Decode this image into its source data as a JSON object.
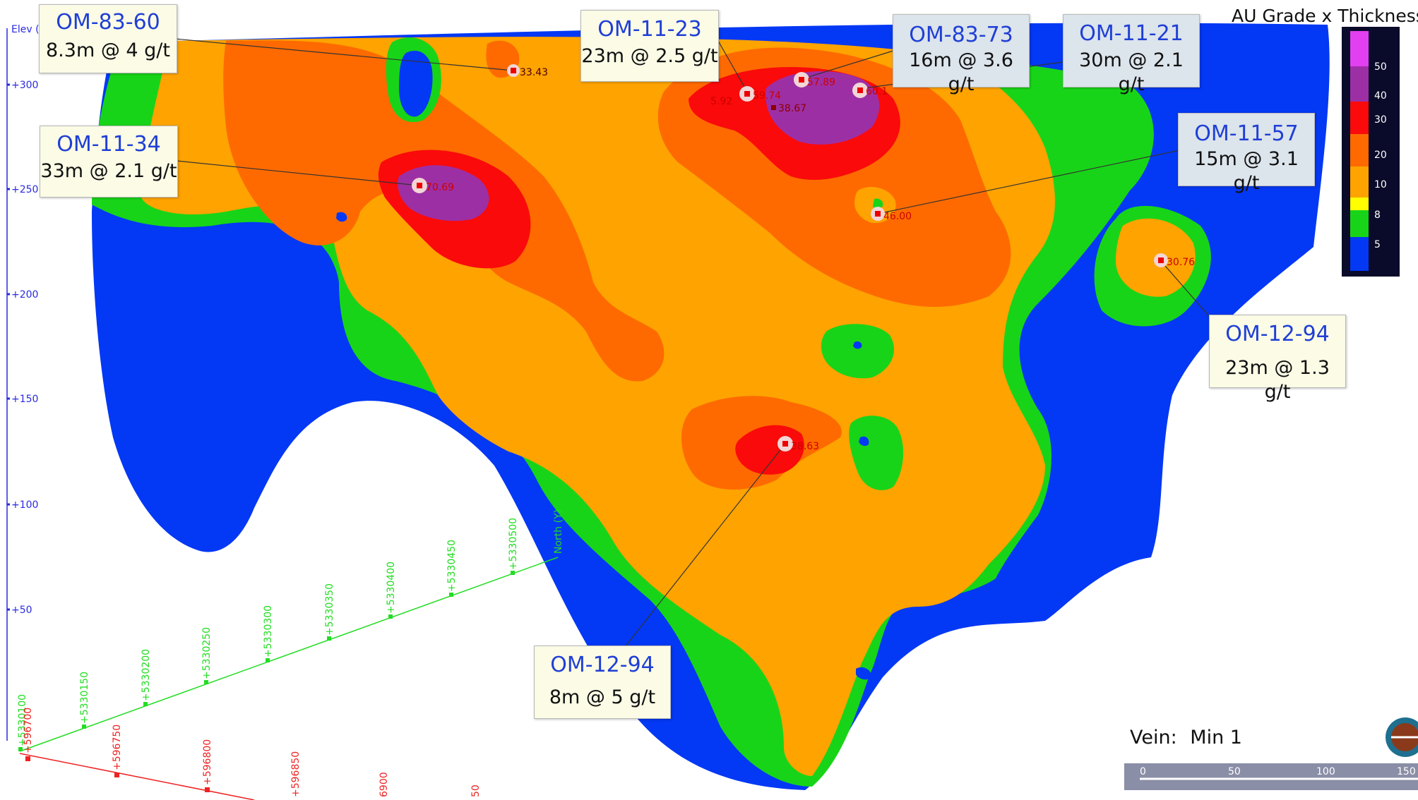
{
  "legend": {
    "title": "AU Grade x Thickness",
    "classes": [
      {
        "label": "50",
        "color": "#e23ff0"
      },
      {
        "label": "40",
        "color": "#9d2fa5"
      },
      {
        "label": "30",
        "color": "#fa0a0a"
      },
      {
        "label": "20",
        "color": "#fe6a00"
      },
      {
        "label": "10",
        "color": "#fea300"
      },
      {
        "label": "8",
        "color": "#ffff00"
      },
      {
        "label": "5",
        "color": "#18d418"
      },
      {
        "label": "",
        "color": "#0338f4"
      }
    ]
  },
  "axis": {
    "elevation_label": "Elev (Z)",
    "elevation_ticks": [
      "+300",
      "+250",
      "+200",
      "+150",
      "+100",
      "+50"
    ],
    "north_label": "North (Y)",
    "north_ticks": [
      "+5330100",
      "+5330150",
      "+5330200",
      "+5330250",
      "+5330300",
      "+5330350",
      "+5330400",
      "+5330450",
      "+5330500"
    ],
    "east_ticks": [
      "+596700",
      "+596750",
      "+596800",
      "+596850",
      "6900",
      "50"
    ]
  },
  "callouts": [
    {
      "hole": "OM-83-60",
      "result": "8.3m @ 4 g/t"
    },
    {
      "hole": "OM-11-34",
      "result": "33m @ 2.1 g/t"
    },
    {
      "hole": "OM-11-23",
      "result": "23m @ 2.5 g/t"
    },
    {
      "hole": "OM-83-73",
      "result": "16m @ 3.6 g/t"
    },
    {
      "hole": "OM-11-21",
      "result": "30m @ 2.1 g/t"
    },
    {
      "hole": "OM-11-57",
      "result": "15m @ 3.1 g/t"
    },
    {
      "hole": "OM-12-94",
      "result": "23m @ 1.3 g/t"
    },
    {
      "hole": "OM-12-94",
      "result": "8m @ 5 g/t"
    }
  ],
  "drill_points": [
    {
      "value": "33.43"
    },
    {
      "value": "70.69"
    },
    {
      "value": "59.74"
    },
    {
      "value": "5.92"
    },
    {
      "value": "38.67"
    },
    {
      "value": "57.89"
    },
    {
      "value": "60.1"
    },
    {
      "value": "46.00"
    },
    {
      "value": "30.76"
    },
    {
      "value": "38.63"
    }
  ],
  "vein": {
    "label": "Vein:",
    "value": "Min 1"
  },
  "scale_bar": {
    "ticks": [
      "0",
      "50",
      "100",
      "150"
    ]
  },
  "colors": {
    "axis_elev": "#2a2ae0",
    "axis_north": "#22dd22",
    "axis_east": "#ee2222",
    "point_label": "#cc0000"
  }
}
